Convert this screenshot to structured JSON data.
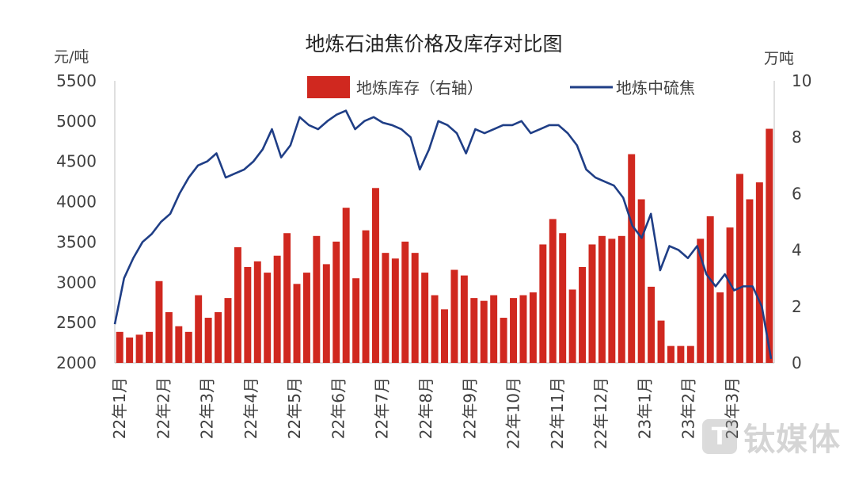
{
  "chart_data": {
    "type": "bar+line",
    "title": "地炼石油焦价格及库存对比图",
    "y_left_unit": "元/吨",
    "y_right_unit": "万吨",
    "y_left_range": [
      2000,
      5500
    ],
    "y_right_range": [
      0,
      10
    ],
    "y_left_ticks": [
      "5500",
      "5000",
      "4500",
      "4000",
      "3500",
      "3000",
      "2500",
      "2000"
    ],
    "y_right_ticks": [
      "10",
      "8",
      "6",
      "4",
      "2",
      "0"
    ],
    "x_tick_labels": [
      "22年1月",
      "22年2月",
      "22年3月",
      "22年4月",
      "22年5月",
      "22年6月",
      "22年7月",
      "22年8月",
      "22年9月",
      "22年10月",
      "22年11月",
      "22年12月",
      "23年1月",
      "23年2月",
      "23年3月"
    ],
    "legend": {
      "bar": "地炼库存（右轴）",
      "line": "地炼中硫焦"
    },
    "colors": {
      "bar": "#d0281f",
      "line": "#1f3e86",
      "axis": "#bfbfbf",
      "text": "#404040"
    },
    "bar_series": {
      "name": "地炼库存（右轴）",
      "axis": "right",
      "values": [
        1.1,
        0.9,
        1.0,
        1.1,
        2.9,
        1.8,
        1.3,
        1.1,
        2.4,
        1.6,
        1.8,
        2.3,
        4.1,
        3.4,
        3.6,
        3.2,
        3.8,
        4.6,
        2.8,
        3.2,
        4.5,
        3.5,
        4.3,
        5.5,
        3.0,
        4.7,
        6.2,
        3.9,
        3.7,
        4.3,
        3.9,
        3.2,
        2.4,
        1.9,
        3.3,
        3.1,
        2.3,
        2.2,
        2.4,
        1.6,
        2.3,
        2.4,
        2.5,
        4.2,
        5.1,
        4.6,
        2.6,
        3.4,
        4.2,
        4.5,
        4.4,
        4.5,
        7.4,
        5.8,
        2.7,
        1.5,
        0.6,
        0.6,
        0.6,
        4.4,
        5.2,
        2.5,
        4.8,
        6.7,
        5.8,
        6.4,
        8.3
      ]
    },
    "line_series": {
      "name": "地炼中硫焦",
      "axis": "left",
      "points": [
        [
          0,
          2480
        ],
        [
          1,
          3050
        ],
        [
          2,
          3300
        ],
        [
          3,
          3500
        ],
        [
          4,
          3600
        ],
        [
          5,
          3750
        ],
        [
          6,
          3850
        ],
        [
          7,
          4100
        ],
        [
          8,
          4300
        ],
        [
          9,
          4450
        ],
        [
          10,
          4500
        ],
        [
          11,
          4600
        ],
        [
          12,
          4300
        ],
        [
          13,
          4350
        ],
        [
          14,
          4400
        ],
        [
          15,
          4500
        ],
        [
          16,
          4650
        ],
        [
          17,
          4900
        ],
        [
          18,
          4550
        ],
        [
          19,
          4700
        ],
        [
          20,
          5050
        ],
        [
          21,
          4950
        ],
        [
          22,
          4900
        ],
        [
          23,
          5000
        ],
        [
          24,
          5080
        ],
        [
          25,
          5130
        ],
        [
          26,
          4900
        ],
        [
          27,
          5000
        ],
        [
          28,
          5050
        ],
        [
          29,
          4980
        ],
        [
          30,
          4950
        ],
        [
          31,
          4900
        ],
        [
          32,
          4800
        ],
        [
          33,
          4400
        ],
        [
          34,
          4650
        ],
        [
          35,
          5000
        ],
        [
          36,
          4950
        ],
        [
          37,
          4850
        ],
        [
          38,
          4600
        ],
        [
          39,
          4900
        ],
        [
          40,
          4850
        ],
        [
          41,
          4900
        ],
        [
          42,
          4950
        ],
        [
          43,
          4950
        ],
        [
          44,
          5000
        ],
        [
          45,
          4850
        ],
        [
          46,
          4900
        ],
        [
          47,
          4950
        ],
        [
          48,
          4950
        ],
        [
          49,
          4850
        ],
        [
          50,
          4700
        ],
        [
          51,
          4400
        ],
        [
          52,
          4300
        ],
        [
          53,
          4250
        ],
        [
          54,
          4200
        ],
        [
          55,
          4050
        ],
        [
          56,
          3700
        ],
        [
          57,
          3550
        ],
        [
          58,
          3850
        ],
        [
          59,
          3150
        ],
        [
          60,
          3450
        ],
        [
          61,
          3400
        ],
        [
          62,
          3300
        ],
        [
          63,
          3450
        ],
        [
          64,
          3100
        ],
        [
          65,
          2950
        ],
        [
          66,
          3100
        ],
        [
          67,
          2900
        ],
        [
          68,
          2950
        ],
        [
          69,
          2950
        ],
        [
          70,
          2700
        ],
        [
          71,
          2050
        ]
      ]
    }
  },
  "watermark": {
    "text": "钛媒体",
    "logo_glyph": "T"
  }
}
